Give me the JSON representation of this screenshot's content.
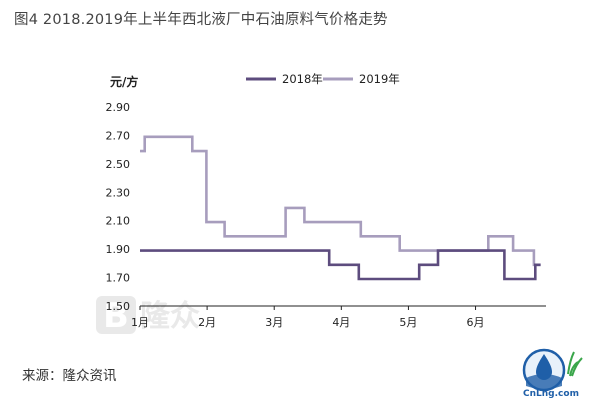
{
  "header": {
    "title": "图4 2018.2019年上半年西北液厂中石油原料气价格走势"
  },
  "footer": {
    "source": "来源：隆众资讯"
  },
  "watermark": {
    "text": "隆众",
    "mark": "B"
  },
  "logo": {
    "text": "CnLng.com"
  },
  "colors": {
    "s2018": "#5d4c7e",
    "s2019": "#a79dbd",
    "axis": "#222222"
  },
  "chart_data": {
    "type": "line",
    "ylabel": "元/方",
    "ylim": [
      1.5,
      2.9
    ],
    "yticks": [
      "1.50",
      "1.70",
      "1.90",
      "2.10",
      "2.30",
      "2.50",
      "2.70",
      "2.90"
    ],
    "xlim": [
      1,
      7.05
    ],
    "xticks": [
      {
        "label": "1月",
        "x": 1
      },
      {
        "label": "2月",
        "x": 2
      },
      {
        "label": "3月",
        "x": 3
      },
      {
        "label": "4月",
        "x": 4
      },
      {
        "label": "5月",
        "x": 5
      },
      {
        "label": "6月",
        "x": 6
      }
    ],
    "legend_position": "top",
    "series": [
      {
        "name": "2018年",
        "points": [
          [
            1.0,
            1.89
          ],
          [
            3.82,
            1.89
          ],
          [
            3.82,
            1.79
          ],
          [
            4.26,
            1.79
          ],
          [
            4.26,
            1.69
          ],
          [
            5.16,
            1.69
          ],
          [
            5.16,
            1.79
          ],
          [
            5.44,
            1.79
          ],
          [
            5.44,
            1.89
          ],
          [
            6.43,
            1.89
          ],
          [
            6.43,
            1.69
          ],
          [
            6.89,
            1.69
          ],
          [
            6.89,
            1.79
          ],
          [
            6.97,
            1.79
          ]
        ]
      },
      {
        "name": "2019年",
        "points": [
          [
            1.0,
            2.59
          ],
          [
            1.07,
            2.59
          ],
          [
            1.07,
            2.69
          ],
          [
            1.78,
            2.69
          ],
          [
            1.78,
            2.59
          ],
          [
            1.99,
            2.59
          ],
          [
            1.99,
            2.09
          ],
          [
            2.26,
            2.09
          ],
          [
            2.26,
            1.99
          ],
          [
            3.17,
            1.99
          ],
          [
            3.17,
            2.19
          ],
          [
            3.45,
            2.19
          ],
          [
            3.45,
            2.09
          ],
          [
            4.29,
            2.09
          ],
          [
            4.29,
            1.99
          ],
          [
            4.87,
            1.99
          ],
          [
            4.87,
            1.89
          ],
          [
            6.19,
            1.89
          ],
          [
            6.19,
            1.99
          ],
          [
            6.56,
            1.99
          ],
          [
            6.56,
            1.89
          ],
          [
            6.87,
            1.89
          ],
          [
            6.87,
            1.79
          ],
          [
            6.97,
            1.79
          ]
        ]
      }
    ]
  }
}
